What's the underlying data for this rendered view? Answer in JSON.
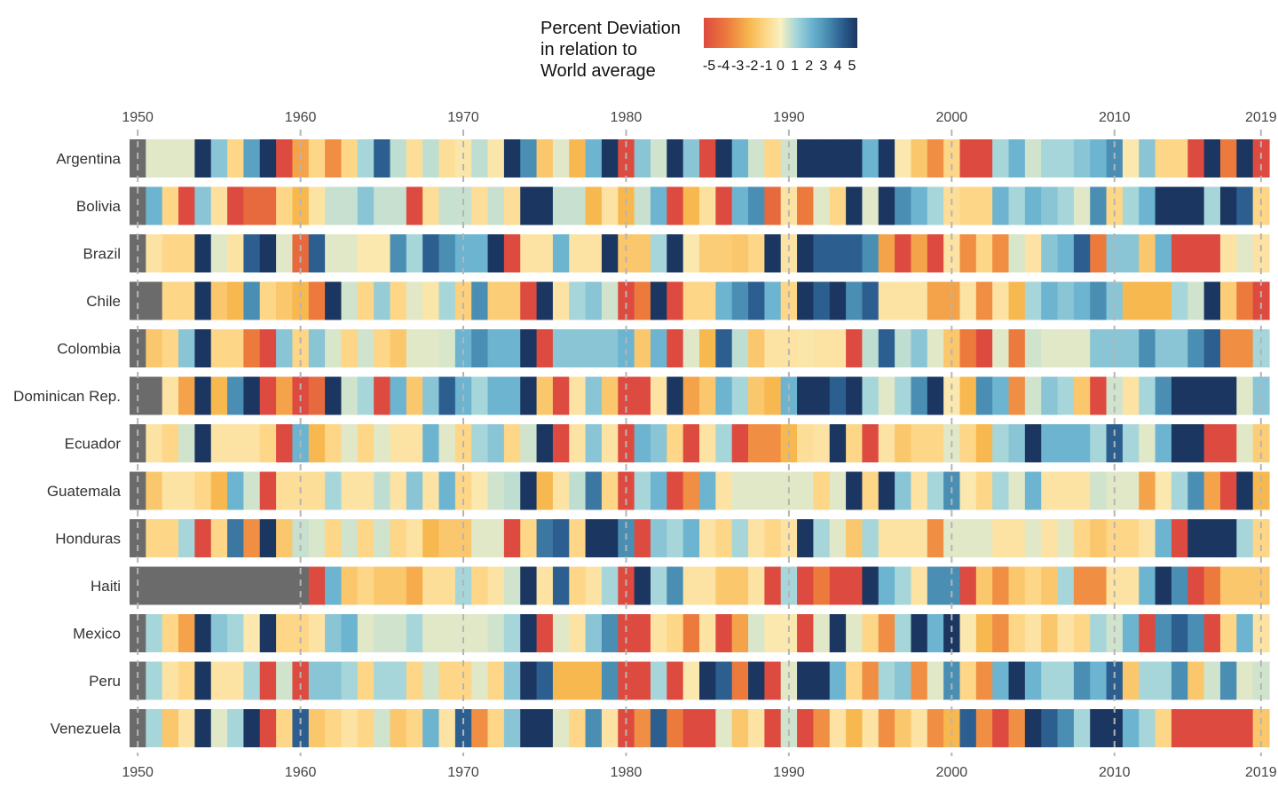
{
  "chart_data": {
    "type": "heatmap",
    "title": "",
    "xlabel": "",
    "ylabel": "",
    "x_range": [
      1950,
      2019
    ],
    "x_ticks": [
      1950,
      1960,
      1970,
      1980,
      1990,
      2000,
      2010,
      2019
    ],
    "missing_color": "#6b6b6b",
    "vertical_reference_lines": [
      1950,
      1960,
      1970,
      1980,
      1990,
      2000,
      2010,
      2019
    ],
    "legend": {
      "title_lines": [
        "Percent Deviation",
        "in relation to",
        "World average"
      ],
      "position": "top-center",
      "ticks": [
        -5,
        -4,
        -3,
        -2,
        -1,
        0,
        1,
        2,
        3,
        4,
        5
      ],
      "range": [
        -5,
        5
      ]
    },
    "colorscale": [
      {
        "value": -5,
        "color": "#dd4b40"
      },
      {
        "value": -3.5,
        "color": "#ec7a3d"
      },
      {
        "value": -2,
        "color": "#f8b850"
      },
      {
        "value": -1,
        "color": "#fdd687"
      },
      {
        "value": 0,
        "color": "#faf0c0"
      },
      {
        "value": 1,
        "color": "#a6d6d9"
      },
      {
        "value": 2,
        "color": "#6cb4d0"
      },
      {
        "value": 3,
        "color": "#4a8fb3"
      },
      {
        "value": 4,
        "color": "#2c5f8f"
      },
      {
        "value": 5,
        "color": "#1b3660"
      }
    ],
    "rows": [
      "Argentina",
      "Bolivia",
      "Brazil",
      "Chile",
      "Colombia",
      "Dominican Rep.",
      "Ecuador",
      "Guatemala",
      "Honduras",
      "Haiti",
      "Mexico",
      "Peru",
      "Venezuela"
    ],
    "values": [
      [
        null,
        0.3,
        0.3,
        0.3,
        5,
        1.5,
        -1,
        2.5,
        5,
        -5,
        -2.5,
        -1,
        -3,
        -1,
        1,
        4,
        0.7,
        -0.7,
        0.7,
        -0.7,
        -0.4,
        0.7,
        -0.4,
        5,
        3,
        -1.5,
        0.3,
        -2,
        2,
        5,
        -5,
        1.5,
        0.5,
        5,
        1.5,
        -5,
        5,
        2,
        0.5,
        -1,
        0.5,
        5,
        5,
        5,
        5,
        2,
        5,
        -0.3,
        -1.5,
        -3,
        -1,
        -5,
        -5,
        1,
        2,
        0.5,
        1,
        1,
        1.5,
        2,
        3,
        -0.3,
        1.5,
        -1,
        -1,
        -5,
        5,
        -3.5,
        5,
        -5
      ],
      [
        null,
        2,
        -1,
        -5,
        1.5,
        -0.6,
        -5,
        -4,
        -4,
        -1,
        -2,
        -0.5,
        0.6,
        0.6,
        1.5,
        0.6,
        0.6,
        -5,
        -0.7,
        0.6,
        0.6,
        -0.7,
        0.6,
        -0.7,
        5,
        5,
        0.6,
        0.6,
        -2,
        -0.5,
        -2,
        0.6,
        2,
        -5,
        -2,
        -0.6,
        -5,
        2,
        3,
        -4,
        -0.5,
        -3.5,
        0.3,
        -1,
        5,
        0.3,
        5,
        3,
        2,
        1,
        -0.7,
        -1,
        -1,
        2,
        1,
        2,
        1.5,
        1,
        0.3,
        3,
        -1,
        1,
        2,
        5,
        5,
        5,
        1,
        5,
        4,
        -1
      ],
      [
        null,
        -0.5,
        -1,
        -1,
        5,
        0.3,
        -0.5,
        4,
        5,
        0.3,
        -4,
        4,
        0.3,
        0.3,
        -0.3,
        -0.3,
        3,
        1,
        4,
        3,
        2,
        2,
        5,
        -5,
        -0.5,
        -0.5,
        2,
        -0.5,
        -0.5,
        5,
        -1.5,
        -1.5,
        1,
        5,
        -0.3,
        -1.3,
        -1.3,
        -1.5,
        -1,
        5,
        -0.5,
        5,
        4,
        4,
        4,
        3,
        -2.5,
        -5,
        -2.5,
        -5,
        -0.5,
        -3,
        -1,
        -3,
        0.4,
        -0.5,
        1.5,
        2,
        4,
        -3.5,
        1.5,
        1.5,
        -1.5,
        2,
        -5,
        -5,
        -5,
        -0.5,
        0.3,
        -0.5
      ],
      [
        null,
        null,
        -1,
        -1,
        5,
        -1.5,
        -2,
        3,
        -1,
        -1.5,
        -2,
        -3.5,
        5,
        0.5,
        -1,
        1.3,
        -1,
        0.3,
        -0.4,
        1,
        -1.2,
        3,
        -1.3,
        -1.3,
        -5,
        5,
        -0.5,
        1,
        1.5,
        0.5,
        -5,
        -3.5,
        5,
        -5,
        -1,
        -1,
        2,
        3,
        4,
        2,
        -1,
        5,
        4,
        5,
        3,
        4,
        -0.5,
        -0.5,
        -0.5,
        -2.5,
        -2.5,
        -0.5,
        -3,
        -0.5,
        -2,
        1,
        2,
        1.5,
        2,
        3,
        1.5,
        -2,
        -2,
        -2,
        1,
        0.5,
        5,
        -1.3,
        -3.5,
        -5
      ],
      [
        null,
        -1.5,
        -1,
        1.5,
        5,
        -1,
        -1,
        -3.5,
        -5,
        1.5,
        -1,
        1.5,
        0.4,
        -1,
        0.5,
        -1,
        -1.5,
        0.3,
        0.3,
        0.4,
        2,
        3,
        2,
        2,
        5,
        -5,
        1.5,
        1.5,
        1.5,
        1.5,
        2,
        -1.5,
        2,
        -5,
        0.3,
        -2,
        4,
        0.7,
        -1.5,
        -0.5,
        -0.5,
        -0.4,
        -0.5,
        -0.5,
        -5,
        0.7,
        4,
        0.7,
        1.5,
        0.3,
        -1.5,
        -3.5,
        -5,
        0.3,
        -3.5,
        0.5,
        0.3,
        0.3,
        0.3,
        1.5,
        1.5,
        1.5,
        3,
        1.5,
        1.5,
        3,
        4,
        -3,
        -3,
        1
      ],
      [
        null,
        null,
        -0.5,
        -2.5,
        5,
        -2,
        3,
        5,
        -5,
        -2.5,
        -5,
        -4,
        5,
        0.5,
        1,
        -5,
        2,
        -1.5,
        1.5,
        4,
        2,
        1,
        2,
        2,
        5,
        -1.5,
        -5,
        -0.5,
        1.5,
        -1.5,
        -5,
        -5,
        -0.5,
        5,
        -2.5,
        -1.5,
        2,
        1,
        -1.5,
        -2,
        2,
        5,
        5,
        4,
        5,
        1,
        0.3,
        1,
        3,
        5,
        -0.3,
        -2,
        3,
        2,
        -3,
        0.5,
        1.5,
        1,
        -1.5,
        -5,
        0.5,
        -0.5,
        1,
        3,
        5,
        5,
        5,
        5,
        0.3,
        1.5
      ],
      [
        null,
        -0.5,
        -1,
        0.5,
        5,
        -0.5,
        -0.5,
        -0.5,
        -1,
        -5,
        2,
        -2,
        -1,
        0.3,
        -1,
        0.3,
        -0.5,
        -0.5,
        2,
        0.3,
        -1,
        1,
        1.5,
        -1,
        0.5,
        5,
        -5,
        -0.5,
        1.5,
        -0.5,
        -5,
        2,
        1.5,
        -1,
        -5,
        -0.5,
        1,
        -5,
        -3,
        -3,
        -2,
        -0.7,
        -0.5,
        5,
        -1,
        -5,
        -0.5,
        -1.5,
        -1,
        -1,
        0.3,
        -1,
        -2,
        1,
        1.5,
        5,
        2,
        2,
        2,
        1,
        4,
        1,
        0.3,
        2,
        5,
        5,
        -5,
        -5,
        0.3,
        -1.3
      ],
      [
        null,
        -1.5,
        -0.5,
        -0.5,
        -1,
        -2,
        2,
        0.5,
        -5,
        -0.7,
        -0.7,
        -0.7,
        1,
        -0.5,
        -0.5,
        0.7,
        -0.5,
        1.5,
        -0.5,
        2,
        -1,
        -0.3,
        0.5,
        0.7,
        5,
        -2,
        -0.5,
        0.7,
        3.5,
        -1,
        -5,
        1,
        2,
        -5,
        -3,
        2,
        -0.5,
        0.3,
        0.3,
        0.3,
        0.3,
        0.3,
        -1,
        0.3,
        5,
        -1,
        5,
        1.5,
        -0.5,
        1,
        3,
        -0.3,
        -1,
        1,
        0.3,
        2,
        -0.5,
        -0.5,
        -0.5,
        0.5,
        0.3,
        0.3,
        -2.5,
        -0.3,
        1,
        3,
        -2.5,
        -5,
        5,
        -2
      ],
      [
        null,
        -1,
        -1,
        1,
        -5,
        -1,
        3.5,
        -3,
        5,
        -1.5,
        0.6,
        0.4,
        -1,
        0.5,
        -1,
        0.5,
        -1,
        -0.5,
        -2,
        -1.5,
        -1.5,
        0.3,
        0.3,
        -5,
        -1,
        3.5,
        4,
        -1,
        5,
        5,
        3,
        -5,
        1.5,
        1,
        2,
        -0.5,
        -1,
        1,
        -0.5,
        -1,
        -0.5,
        5,
        1,
        0.3,
        -1.5,
        1,
        -0.5,
        -0.5,
        -0.5,
        -3,
        0.3,
        0.3,
        0.3,
        -0.5,
        -0.5,
        0.3,
        -0.5,
        0.3,
        -1,
        -1.5,
        -1,
        -1,
        -0.5,
        2,
        -5,
        5,
        5,
        5,
        1,
        -1
      ],
      [
        null,
        null,
        null,
        null,
        null,
        null,
        null,
        null,
        null,
        null,
        null,
        -5,
        2,
        -1.5,
        -1,
        -1.5,
        -1.5,
        -2.3,
        -0.7,
        -0.7,
        1,
        -1,
        -0.5,
        0.5,
        5,
        -0.5,
        4,
        -1,
        -0.5,
        1,
        -5,
        5,
        1,
        3,
        -0.5,
        -0.5,
        -1.5,
        -1.5,
        -0.5,
        -5,
        1,
        -5,
        -3.5,
        -5,
        -5,
        5,
        2,
        1,
        -0.5,
        3,
        3,
        -5,
        -1.5,
        -3,
        -1.5,
        -1,
        -1.5,
        1,
        -3,
        -3,
        -0.5,
        -0.5,
        2,
        5,
        3,
        -5,
        -3.5,
        -1.5,
        -1.5,
        -1.5
      ],
      [
        null,
        1,
        -1,
        -2.5,
        5,
        1.5,
        1,
        -0.3,
        5,
        -1,
        -1,
        -0.5,
        1.5,
        2,
        0.3,
        0.5,
        0.5,
        1,
        0.3,
        0.3,
        0.3,
        0.3,
        0.5,
        1,
        5,
        -5,
        0.3,
        -0.5,
        1.5,
        3,
        -5,
        -5,
        -0.5,
        -1,
        -3.5,
        -0.5,
        -5,
        -2.5,
        0.4,
        -0.3,
        -0.3,
        -5,
        0.3,
        5,
        0.3,
        -1,
        -3,
        1,
        5,
        2,
        5,
        -0.3,
        -2,
        -3,
        -1,
        -0.5,
        -1.5,
        -0.5,
        -1,
        1,
        0.5,
        2,
        -5,
        3,
        4,
        3,
        -5,
        -1,
        2,
        -0.5
      ],
      [
        null,
        1,
        -0.5,
        -1,
        5,
        -0.5,
        -0.5,
        1,
        -5,
        0.5,
        -5,
        1.5,
        1.5,
        1,
        -1,
        1,
        1,
        -1,
        0.5,
        -1,
        -1,
        0.3,
        -1,
        1.5,
        5,
        4,
        -2,
        -2,
        -2,
        3,
        -5,
        -5,
        1,
        -5,
        -0.3,
        5,
        4,
        -3.5,
        5,
        -5,
        0.3,
        5,
        5,
        2,
        -1,
        -3,
        1,
        1.5,
        -3,
        0.3,
        3,
        -1,
        -3,
        2,
        5,
        2,
        1,
        1,
        3,
        2,
        4,
        -1.5,
        1,
        1,
        3,
        -1.5,
        0.5,
        3,
        0.3,
        0.5
      ],
      [
        null,
        1,
        -1.5,
        -0.5,
        5,
        0.3,
        1,
        5,
        -5,
        -1,
        4,
        -1.5,
        -1,
        -0.5,
        -1,
        0.5,
        -1.5,
        -1,
        2,
        -0.5,
        4,
        -3,
        -1,
        1.5,
        5,
        5,
        0.3,
        -1,
        3,
        -0.5,
        -5,
        -3,
        4,
        -3.5,
        -5,
        -5,
        0.3,
        -1.5,
        -0.5,
        -5,
        0.5,
        -5,
        -3,
        -0.5,
        -2,
        -0.5,
        -3,
        -1.5,
        -0.5,
        -3,
        -2,
        4,
        -3,
        -5,
        -3,
        5,
        4,
        3,
        1,
        5,
        5,
        2,
        1,
        -1,
        -5,
        -5,
        -5,
        -5,
        -5,
        -1.5
      ]
    ]
  }
}
